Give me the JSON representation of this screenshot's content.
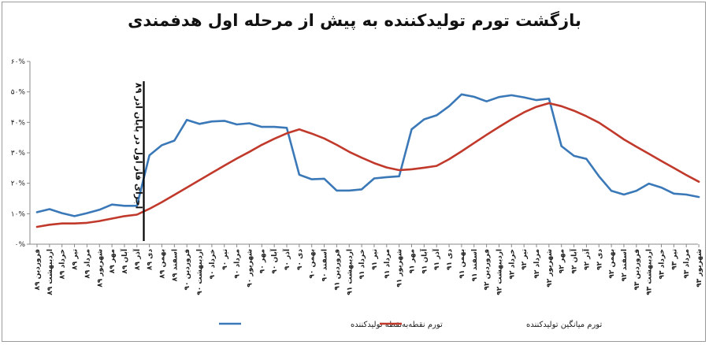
{
  "chart_data": {
    "type": "line",
    "title": "بازگشت تورم تولیدکننده به پیش از مرحله اول هدفمندی",
    "categories": [
      "فروردین ۸۹",
      "اردیبهشت ۸۹",
      "خرداد ۸۹",
      "تیر ۸۹",
      "مرداد ۸۹",
      "شهریور ۸۹",
      "مهر ۸۹",
      "آبان ۸۹",
      "آذر ۸۹",
      "دی ۸۹",
      "بهمن ۸۹",
      "اسفند ۸۹",
      "فروردین ۹۰",
      "اردیبهشت ۹۰",
      "خرداد ۹۰",
      "تیر ۹۰",
      "مرداد ۹۰",
      "شهریور ۹۰",
      "مهر ۹۰",
      "آبان ۹۰",
      "آذر ۹۰",
      "دی ۹۰",
      "بهمن ۹۰",
      "اسفند ۹۰",
      "فروردین ۹۱",
      "اردیبهشت ۹۱",
      "خرداد ۹۱",
      "تیر ۹۱",
      "مرداد ۹۱",
      "شهریور ۹۱",
      "مهر ۹۱",
      "آبان ۹۱",
      "آذر ۹۱",
      "دی ۹۱",
      "بهمن ۹۱",
      "اسفند ۹۱",
      "فروردین ۹۲",
      "اردیبهشت ۹۲",
      "خرداد ۹۲",
      "تیر ۹۲",
      "مرداد ۹۲",
      "شهریور ۹۲",
      "مهر ۹۲",
      "آبان ۹۲",
      "آذر ۹۲",
      "دی ۹۲",
      "بهمن ۹۲",
      "اسفند ۹۲",
      "فروردین ۹۳",
      "اردیبهشت ۹۳",
      "خرداد ۹۳",
      "تیر ۹۳",
      "مرداد ۹۳",
      "شهریور ۹۳"
    ],
    "y_ticks": [
      "۰%",
      "۱۰%",
      "۲۰%",
      "۳۰%",
      "۴۰%",
      "۵۰%",
      "۶۰%"
    ],
    "ylim": [
      0,
      60
    ],
    "series": [
      {
        "name": "تورم نقطه‌به‌نقطه تولیدکننده",
        "color": "#3a78b8",
        "values": [
          10.5,
          11.5,
          10.2,
          9.2,
          10.2,
          11.3,
          13.0,
          12.6,
          12.6,
          29.2,
          32.5,
          34.0,
          40.8,
          39.5,
          40.3,
          40.5,
          39.3,
          39.7,
          38.5,
          38.5,
          38.2,
          22.8,
          21.3,
          21.5,
          17.6,
          17.6,
          18.0,
          21.6,
          22.0,
          22.3,
          37.7,
          41.0,
          42.3,
          45.3,
          49.2,
          48.4,
          46.9,
          48.3,
          48.9,
          48.2,
          47.3,
          47.8,
          32.2,
          29.0,
          28.0,
          22.3,
          17.5,
          16.3,
          17.5,
          19.9,
          18.6,
          16.6,
          16.3,
          15.5
        ]
      },
      {
        "name": "تورم میانگین تولیدکننده",
        "color": "#c0392b",
        "values": [
          5.7,
          6.4,
          6.8,
          6.8,
          7.0,
          7.6,
          8.4,
          9.2,
          9.7,
          11.6,
          13.8,
          16.2,
          18.6,
          21.0,
          23.4,
          25.8,
          28.1,
          30.3,
          32.6,
          34.6,
          36.4,
          37.7,
          36.3,
          34.7,
          32.6,
          30.3,
          28.4,
          26.6,
          25.2,
          24.3,
          24.6,
          25.1,
          25.7,
          27.9,
          30.5,
          33.2,
          35.9,
          38.5,
          41.0,
          43.3,
          45.1,
          46.3,
          45.3,
          43.8,
          42.0,
          39.9,
          37.2,
          34.4,
          32.0,
          29.7,
          27.3,
          25.0,
          22.7,
          20.5
        ]
      }
    ],
    "annotation": {
      "text": "اجرای فاز اول  در پایان آذر ۸۹",
      "at_category": "آذر ۸۹"
    },
    "grid": false,
    "legend_position": "bottom"
  }
}
